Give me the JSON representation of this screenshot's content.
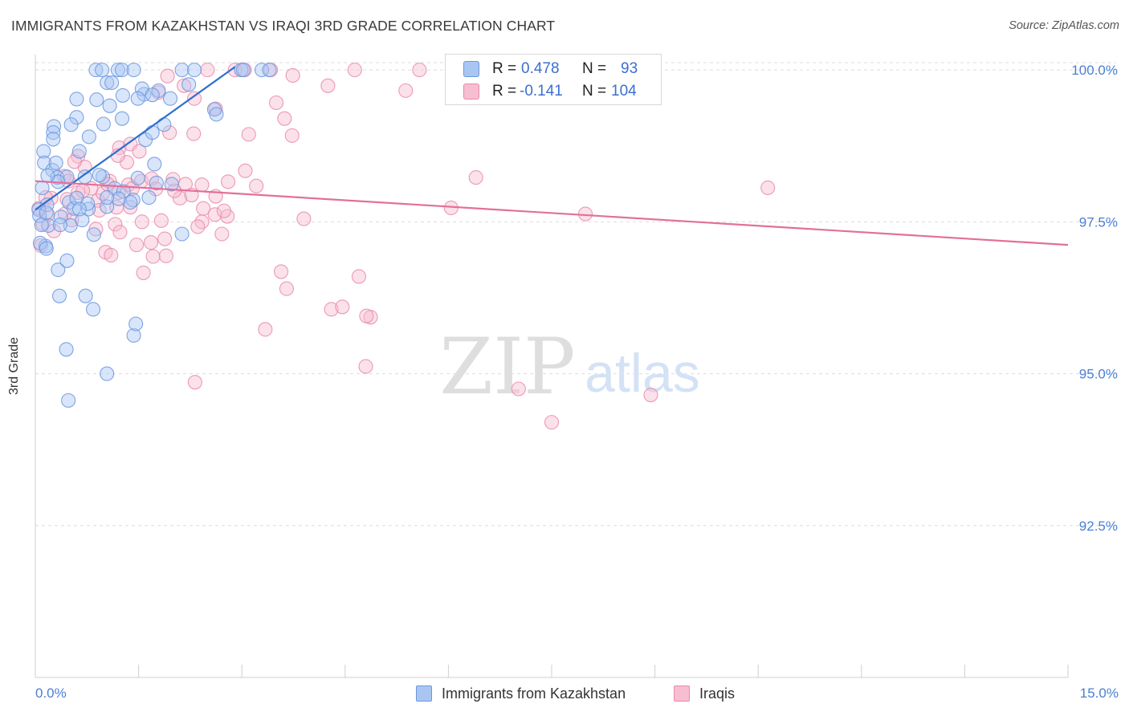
{
  "title": "IMMIGRANTS FROM KAZAKHSTAN VS IRAQI 3RD GRADE CORRELATION CHART",
  "source": "Source: ZipAtlas.com",
  "watermark": {
    "zip": "ZIP",
    "atlas": "atlas"
  },
  "colors": {
    "blue": "#6a97dd",
    "blue_fill": "#a9c6f3",
    "blue_line": "#2d6fd0",
    "pink": "#e98aab",
    "pink_fill": "#f7bdd0",
    "pink_line": "#e2709a",
    "axis_text": "#4a7fd4",
    "grid": "#dddddd"
  },
  "stats": {
    "blue": {
      "r_label": "R =",
      "r_value": "0.478",
      "n_label": "N =",
      "n_value": "93"
    },
    "pink": {
      "r_label": "R =",
      "r_value": "-0.141",
      "n_label": "N =",
      "n_value": "104"
    }
  },
  "legend": {
    "blue": "Immigrants from Kazakhstan",
    "pink": "Iraqis"
  },
  "chart_data": {
    "type": "scatter",
    "title": "IMMIGRANTS FROM KAZAKHSTAN VS IRAQI 3RD GRADE CORRELATION CHART",
    "xlabel": "",
    "ylabel": "3rd Grade",
    "xlim": [
      0,
      15
    ],
    "ylim": [
      90.0,
      100.2
    ],
    "x_tick_labels": [
      "0.0%",
      "15.0%"
    ],
    "y_ticks": [
      92.5,
      95.0,
      97.5,
      100.0
    ],
    "y_tick_labels": [
      "92.5%",
      "95.0%",
      "97.5%",
      "100.0%"
    ],
    "grid": true,
    "series": [
      {
        "name": "Immigrants from Kazakhstan",
        "color": "blue",
        "trend": {
          "x": [
            0.0,
            2.9
          ],
          "y": [
            97.7,
            100.05
          ]
        },
        "points": [
          [
            0.88,
            100.0
          ],
          [
            0.97,
            100.0
          ],
          [
            1.2,
            100.0
          ],
          [
            1.26,
            100.0
          ],
          [
            1.43,
            100.0
          ],
          [
            2.13,
            100.0
          ],
          [
            2.31,
            100.0
          ],
          [
            2.99,
            100.0
          ],
          [
            3.02,
            100.0
          ],
          [
            3.29,
            100.0
          ],
          [
            3.4,
            100.0
          ],
          [
            1.04,
            99.79
          ],
          [
            1.58,
            99.6
          ],
          [
            1.55,
            99.69
          ],
          [
            1.79,
            99.66
          ],
          [
            2.23,
            99.76
          ],
          [
            0.6,
            99.52
          ],
          [
            0.89,
            99.51
          ],
          [
            1.08,
            99.41
          ],
          [
            1.27,
            99.58
          ],
          [
            1.49,
            99.53
          ],
          [
            1.7,
            99.59
          ],
          [
            1.96,
            99.53
          ],
          [
            1.11,
            99.79
          ],
          [
            2.6,
            99.35
          ],
          [
            2.63,
            99.27
          ],
          [
            0.6,
            99.22
          ],
          [
            0.99,
            99.11
          ],
          [
            1.26,
            99.2
          ],
          [
            0.27,
            99.07
          ],
          [
            0.26,
            98.97
          ],
          [
            0.78,
            98.9
          ],
          [
            1.6,
            98.85
          ],
          [
            0.12,
            98.66
          ],
          [
            0.64,
            98.66
          ],
          [
            0.13,
            98.47
          ],
          [
            0.25,
            98.35
          ],
          [
            0.32,
            98.23
          ],
          [
            0.46,
            98.24
          ],
          [
            0.98,
            98.24
          ],
          [
            1.49,
            98.22
          ],
          [
            1.76,
            98.14
          ],
          [
            1.15,
            98.05
          ],
          [
            0.1,
            98.06
          ],
          [
            1.98,
            98.12
          ],
          [
            0.17,
            97.78
          ],
          [
            0.49,
            97.82
          ],
          [
            0.77,
            97.71
          ],
          [
            1.04,
            97.75
          ],
          [
            1.42,
            97.86
          ],
          [
            1.65,
            97.9
          ],
          [
            0.05,
            97.7
          ],
          [
            0.19,
            97.44
          ],
          [
            0.37,
            97.58
          ],
          [
            0.51,
            97.44
          ],
          [
            0.68,
            97.53
          ],
          [
            0.85,
            97.29
          ],
          [
            0.15,
            97.1
          ],
          [
            0.33,
            96.71
          ],
          [
            0.46,
            96.86
          ],
          [
            0.35,
            96.28
          ],
          [
            0.73,
            96.28
          ],
          [
            0.84,
            96.06
          ],
          [
            1.43,
            95.63
          ],
          [
            1.46,
            95.82
          ],
          [
            0.45,
            95.4
          ],
          [
            1.04,
            95.0
          ],
          [
            0.48,
            94.56
          ],
          [
            0.06,
            97.6
          ],
          [
            0.09,
            97.45
          ],
          [
            0.07,
            97.15
          ],
          [
            0.56,
            97.72
          ],
          [
            0.6,
            97.89
          ],
          [
            0.33,
            98.16
          ],
          [
            0.93,
            98.27
          ],
          [
            1.38,
            97.82
          ],
          [
            0.18,
            98.26
          ],
          [
            1.73,
            98.45
          ],
          [
            0.76,
            97.8
          ],
          [
            0.64,
            97.71
          ],
          [
            0.36,
            97.45
          ],
          [
            0.16,
            97.06
          ],
          [
            0.16,
            97.65
          ],
          [
            1.7,
            98.97
          ],
          [
            1.87,
            99.1
          ],
          [
            2.13,
            97.3
          ],
          [
            1.28,
            98.0
          ],
          [
            1.21,
            97.88
          ],
          [
            0.3,
            98.47
          ],
          [
            0.26,
            98.86
          ],
          [
            0.52,
            99.1
          ],
          [
            0.72,
            98.24
          ],
          [
            1.04,
            97.9
          ]
        ]
      },
      {
        "name": "Iraqis",
        "color": "pink",
        "trend": {
          "x": [
            0.0,
            15.0
          ],
          "y": [
            98.17,
            97.12
          ]
        },
        "points": [
          [
            2.5,
            100.0
          ],
          [
            2.9,
            100.0
          ],
          [
            3.04,
            100.0
          ],
          [
            3.42,
            100.0
          ],
          [
            4.64,
            100.0
          ],
          [
            5.58,
            100.0
          ],
          [
            3.74,
            99.91
          ],
          [
            2.16,
            99.74
          ],
          [
            4.25,
            99.74
          ],
          [
            5.38,
            99.66
          ],
          [
            1.92,
            99.9
          ],
          [
            1.79,
            99.63
          ],
          [
            2.31,
            99.53
          ],
          [
            3.5,
            99.46
          ],
          [
            2.62,
            99.36
          ],
          [
            3.62,
            99.2
          ],
          [
            1.95,
            98.97
          ],
          [
            2.3,
            98.95
          ],
          [
            3.1,
            98.94
          ],
          [
            3.73,
            98.92
          ],
          [
            1.22,
            98.72
          ],
          [
            0.62,
            98.58
          ],
          [
            1.38,
            98.78
          ],
          [
            1.51,
            98.66
          ],
          [
            1.33,
            98.48
          ],
          [
            1.54,
            98.17
          ],
          [
            1.69,
            98.21
          ],
          [
            2.0,
            98.2
          ],
          [
            2.18,
            98.12
          ],
          [
            2.42,
            98.11
          ],
          [
            2.8,
            98.16
          ],
          [
            0.72,
            98.4
          ],
          [
            1.08,
            98.17
          ],
          [
            1.35,
            98.11
          ],
          [
            3.05,
            98.34
          ],
          [
            3.21,
            98.09
          ],
          [
            2.1,
            97.89
          ],
          [
            0.46,
            97.87
          ],
          [
            0.91,
            97.85
          ],
          [
            0.43,
            97.63
          ],
          [
            1.38,
            97.74
          ],
          [
            2.44,
            97.72
          ],
          [
            2.61,
            97.62
          ],
          [
            2.79,
            97.59
          ],
          [
            3.9,
            97.55
          ],
          [
            6.04,
            97.73
          ],
          [
            7.99,
            97.63
          ],
          [
            10.64,
            98.06
          ],
          [
            6.4,
            98.23
          ],
          [
            1.16,
            97.46
          ],
          [
            1.55,
            97.5
          ],
          [
            1.88,
            97.22
          ],
          [
            2.42,
            97.5
          ],
          [
            2.71,
            97.3
          ],
          [
            0.27,
            97.35
          ],
          [
            0.88,
            97.38
          ],
          [
            0.53,
            97.53
          ],
          [
            1.02,
            97.0
          ],
          [
            1.1,
            96.95
          ],
          [
            1.9,
            96.94
          ],
          [
            1.57,
            96.66
          ],
          [
            3.57,
            96.68
          ],
          [
            4.7,
            96.6
          ],
          [
            4.3,
            96.06
          ],
          [
            4.46,
            96.1
          ],
          [
            4.87,
            95.93
          ],
          [
            3.65,
            96.4
          ],
          [
            4.81,
            95.95
          ],
          [
            3.34,
            95.73
          ],
          [
            4.8,
            95.12
          ],
          [
            2.32,
            94.86
          ],
          [
            7.02,
            94.75
          ],
          [
            8.94,
            94.65
          ],
          [
            7.5,
            94.2
          ],
          [
            0.98,
            97.97
          ],
          [
            1.18,
            97.74
          ],
          [
            0.18,
            97.62
          ],
          [
            0.23,
            97.89
          ],
          [
            0.62,
            97.98
          ],
          [
            0.81,
            98.05
          ],
          [
            0.42,
            98.25
          ],
          [
            0.57,
            98.49
          ],
          [
            0.69,
            98.01
          ],
          [
            1.75,
            98.04
          ],
          [
            1.83,
            97.52
          ],
          [
            1.05,
            98.12
          ],
          [
            1.2,
            98.59
          ],
          [
            2.62,
            97.92
          ],
          [
            2.74,
            97.68
          ],
          [
            2.36,
            97.42
          ],
          [
            1.47,
            97.12
          ],
          [
            1.71,
            96.93
          ],
          [
            0.08,
            97.11
          ],
          [
            0.11,
            97.47
          ],
          [
            0.05,
            97.72
          ],
          [
            0.15,
            97.9
          ],
          [
            0.48,
            98.17
          ],
          [
            0.93,
            97.69
          ],
          [
            1.21,
            97.98
          ],
          [
            1.41,
            98.05
          ],
          [
            1.23,
            97.33
          ],
          [
            1.68,
            97.16
          ],
          [
            2.02,
            98.01
          ],
          [
            2.27,
            97.94
          ]
        ]
      }
    ]
  }
}
